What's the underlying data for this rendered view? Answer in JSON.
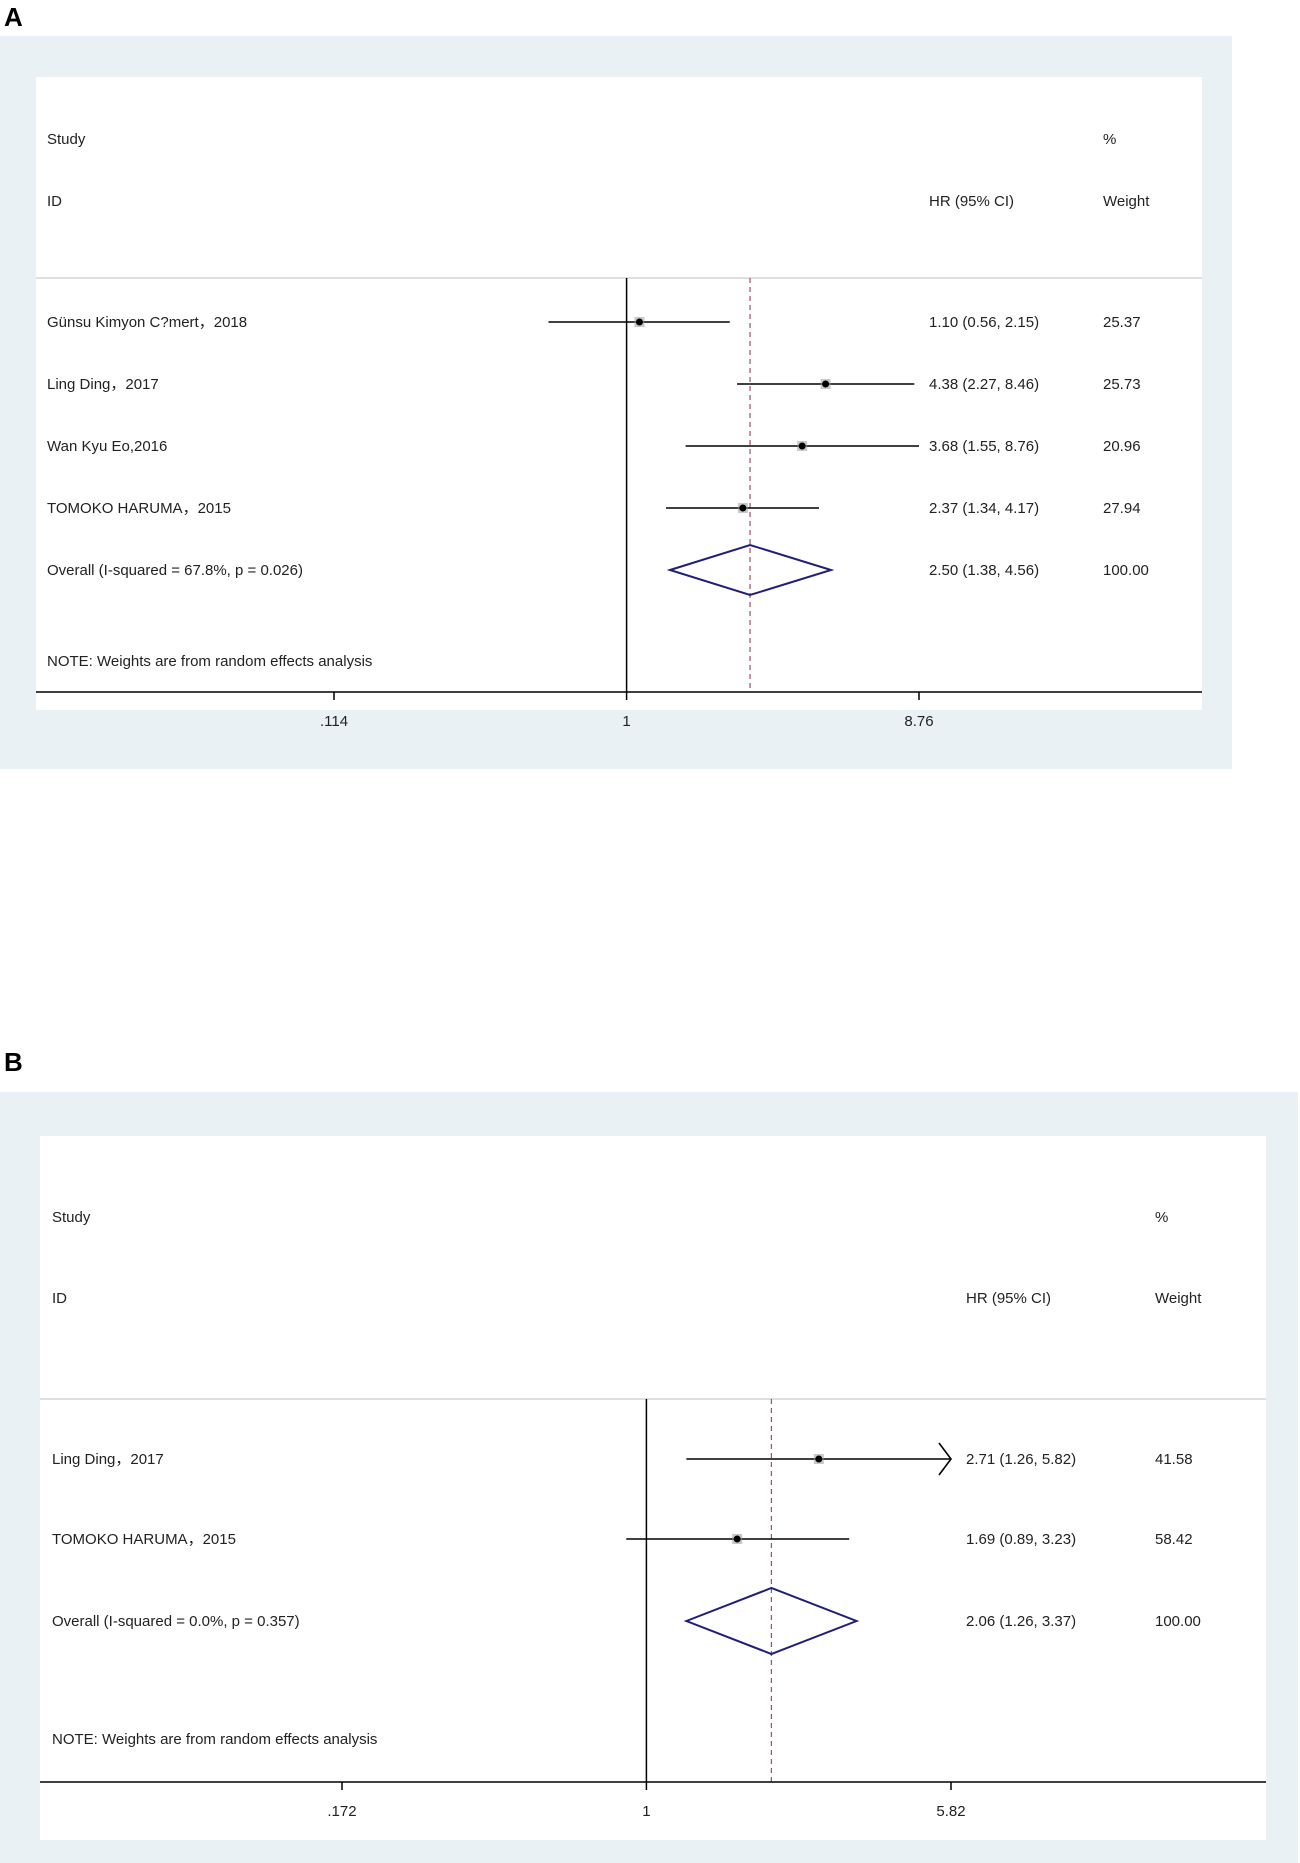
{
  "chart_data": [
    {
      "type": "forest",
      "panel_label": "A",
      "headers": {
        "study_top": "Study",
        "study_bottom": "ID",
        "hr": "HR (95% CI)",
        "weight_top": "%",
        "weight_bottom": "Weight"
      },
      "studies": [
        {
          "label": "Günsu Kimyon C?mert，2018",
          "hr": 1.1,
          "lo": 0.56,
          "hi": 2.15,
          "ci_text": "1.10 (0.56, 2.15)",
          "weight": "25.37"
        },
        {
          "label": "Ling Ding，2017",
          "hr": 4.38,
          "lo": 2.27,
          "hi": 8.46,
          "ci_text": "4.38 (2.27, 8.46)",
          "weight": "25.73"
        },
        {
          "label": "Wan Kyu Eo,2016",
          "hr": 3.68,
          "lo": 1.55,
          "hi": 8.76,
          "ci_text": "3.68 (1.55, 8.76)",
          "weight": "20.96"
        },
        {
          "label": "TOMOKO HARUMA，2015",
          "hr": 2.37,
          "lo": 1.34,
          "hi": 4.17,
          "ci_text": "2.37 (1.34, 4.17)",
          "weight": "27.94"
        }
      ],
      "overall": {
        "label": "Overall  (I-squared = 67.8%, p = 0.026)",
        "hr": 2.5,
        "lo": 1.38,
        "hi": 4.56,
        "ci_text": "2.50 (1.38, 4.56)",
        "weight": "100.00"
      },
      "note": "NOTE: Weights are from random effects analysis",
      "x_scale": "log",
      "xlim": [
        0.114,
        8.76
      ],
      "ticks": [
        {
          "value": 0.114,
          "label": ".114"
        },
        {
          "value": 1,
          "label": "1"
        },
        {
          "value": 8.76,
          "label": "8.76"
        }
      ],
      "null_line": 1,
      "colors": {
        "line": "#000000",
        "diamond": "#1f1f7a",
        "ref_line": "#a05060",
        "panel_bg": "#e9f1f5"
      }
    },
    {
      "type": "forest",
      "panel_label": "B",
      "headers": {
        "study_top": "Study",
        "study_bottom": "ID",
        "hr": "HR (95% CI)",
        "weight_top": "%",
        "weight_bottom": "Weight"
      },
      "studies": [
        {
          "label": "Ling Ding，2017",
          "hr": 2.71,
          "lo": 1.26,
          "hi": 5.82,
          "ci_text": "2.71 (1.26, 5.82)",
          "weight": "41.58",
          "arrow_right": true
        },
        {
          "label": "TOMOKO HARUMA，2015",
          "hr": 1.69,
          "lo": 0.89,
          "hi": 3.23,
          "ci_text": "1.69 (0.89, 3.23)",
          "weight": "58.42"
        }
      ],
      "overall": {
        "label": "Overall  (I-squared = 0.0%, p = 0.357)",
        "hr": 2.06,
        "lo": 1.26,
        "hi": 3.37,
        "ci_text": "2.06 (1.26, 3.37)",
        "weight": "100.00"
      },
      "note": "NOTE: Weights are from random effects analysis",
      "x_scale": "log",
      "xlim": [
        0.172,
        5.82
      ],
      "ticks": [
        {
          "value": 0.172,
          "label": ".172"
        },
        {
          "value": 1,
          "label": "1"
        },
        {
          "value": 5.82,
          "label": "5.82"
        }
      ],
      "null_line": 1,
      "colors": {
        "line": "#000000",
        "diamond": "#1f1f7a",
        "ref_line": "#a05060",
        "panel_bg": "#e9f1f5"
      }
    }
  ]
}
